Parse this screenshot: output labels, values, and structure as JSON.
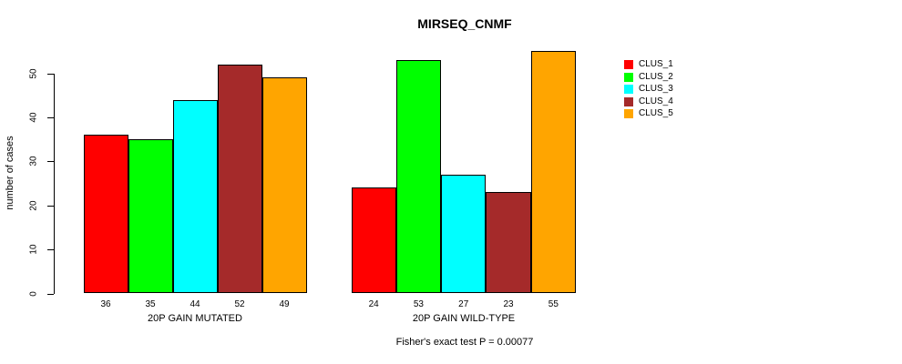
{
  "chart_data": {
    "type": "bar",
    "title": "MIRSEQ_CNMF",
    "ylabel": "number of cases",
    "xlabel": "",
    "ylim": [
      0,
      50
    ],
    "yticks": [
      0,
      10,
      20,
      30,
      40,
      50
    ],
    "grid": false,
    "legend_position": "right",
    "legend": [
      {
        "label": "CLUS_1",
        "color": "#FF0000"
      },
      {
        "label": "CLUS_2",
        "color": "#00FF00"
      },
      {
        "label": "CLUS_3",
        "color": "#00FFFF"
      },
      {
        "label": "CLUS_4",
        "color": "#A52A2A"
      },
      {
        "label": "CLUS_5",
        "color": "#FFA500"
      }
    ],
    "groups": [
      {
        "label": "20P GAIN MUTATED",
        "values": [
          36,
          35,
          44,
          52,
          49
        ]
      },
      {
        "label": "20P GAIN WILD-TYPE",
        "values": [
          24,
          53,
          27,
          23,
          55
        ]
      }
    ],
    "annotation": "Fisher's exact test P = 0.00077"
  }
}
